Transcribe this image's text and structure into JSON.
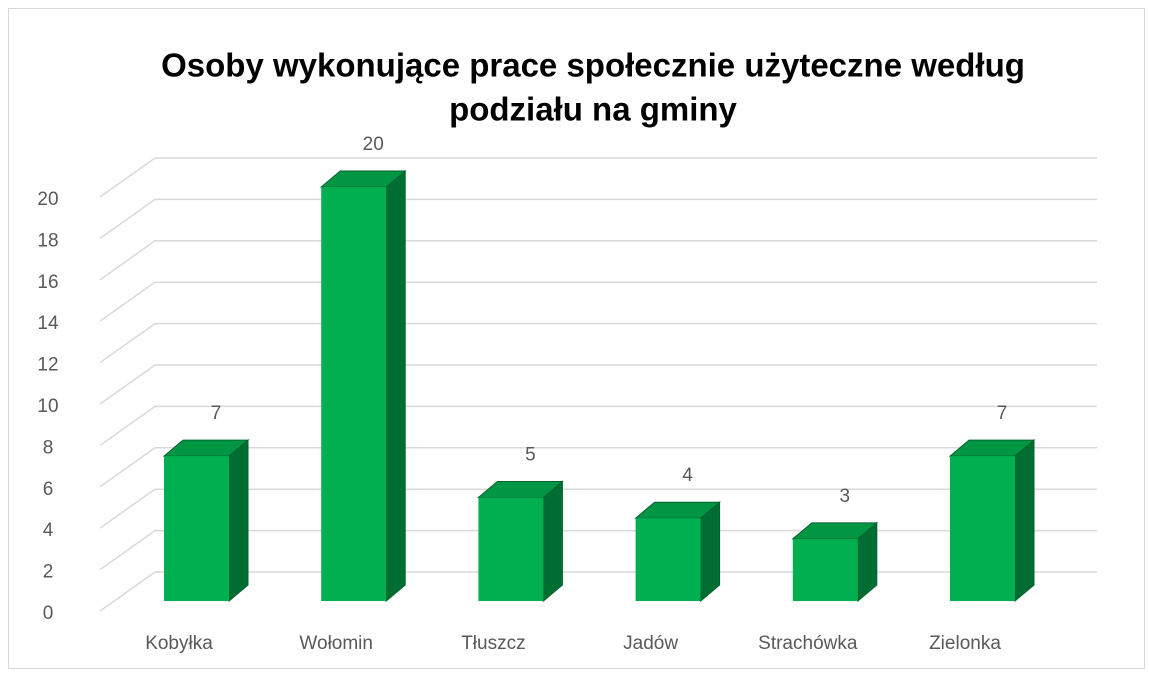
{
  "chart_data": {
    "type": "bar3d",
    "title": [
      "Osoby wykonujące prace społecznie użyteczne według",
      "podziału na gminy"
    ],
    "categories": [
      "Kobyłka",
      "Wołomin",
      "Tłuszcz",
      "Jadów",
      "Strachówka",
      "Zielonka"
    ],
    "values": [
      7,
      20,
      5,
      4,
      3,
      7
    ],
    "color": "#00b050",
    "ylim": [
      0,
      20
    ],
    "yticks": [
      0,
      2,
      4,
      6,
      8,
      10,
      12,
      14,
      16,
      18,
      20
    ],
    "grid": true
  }
}
